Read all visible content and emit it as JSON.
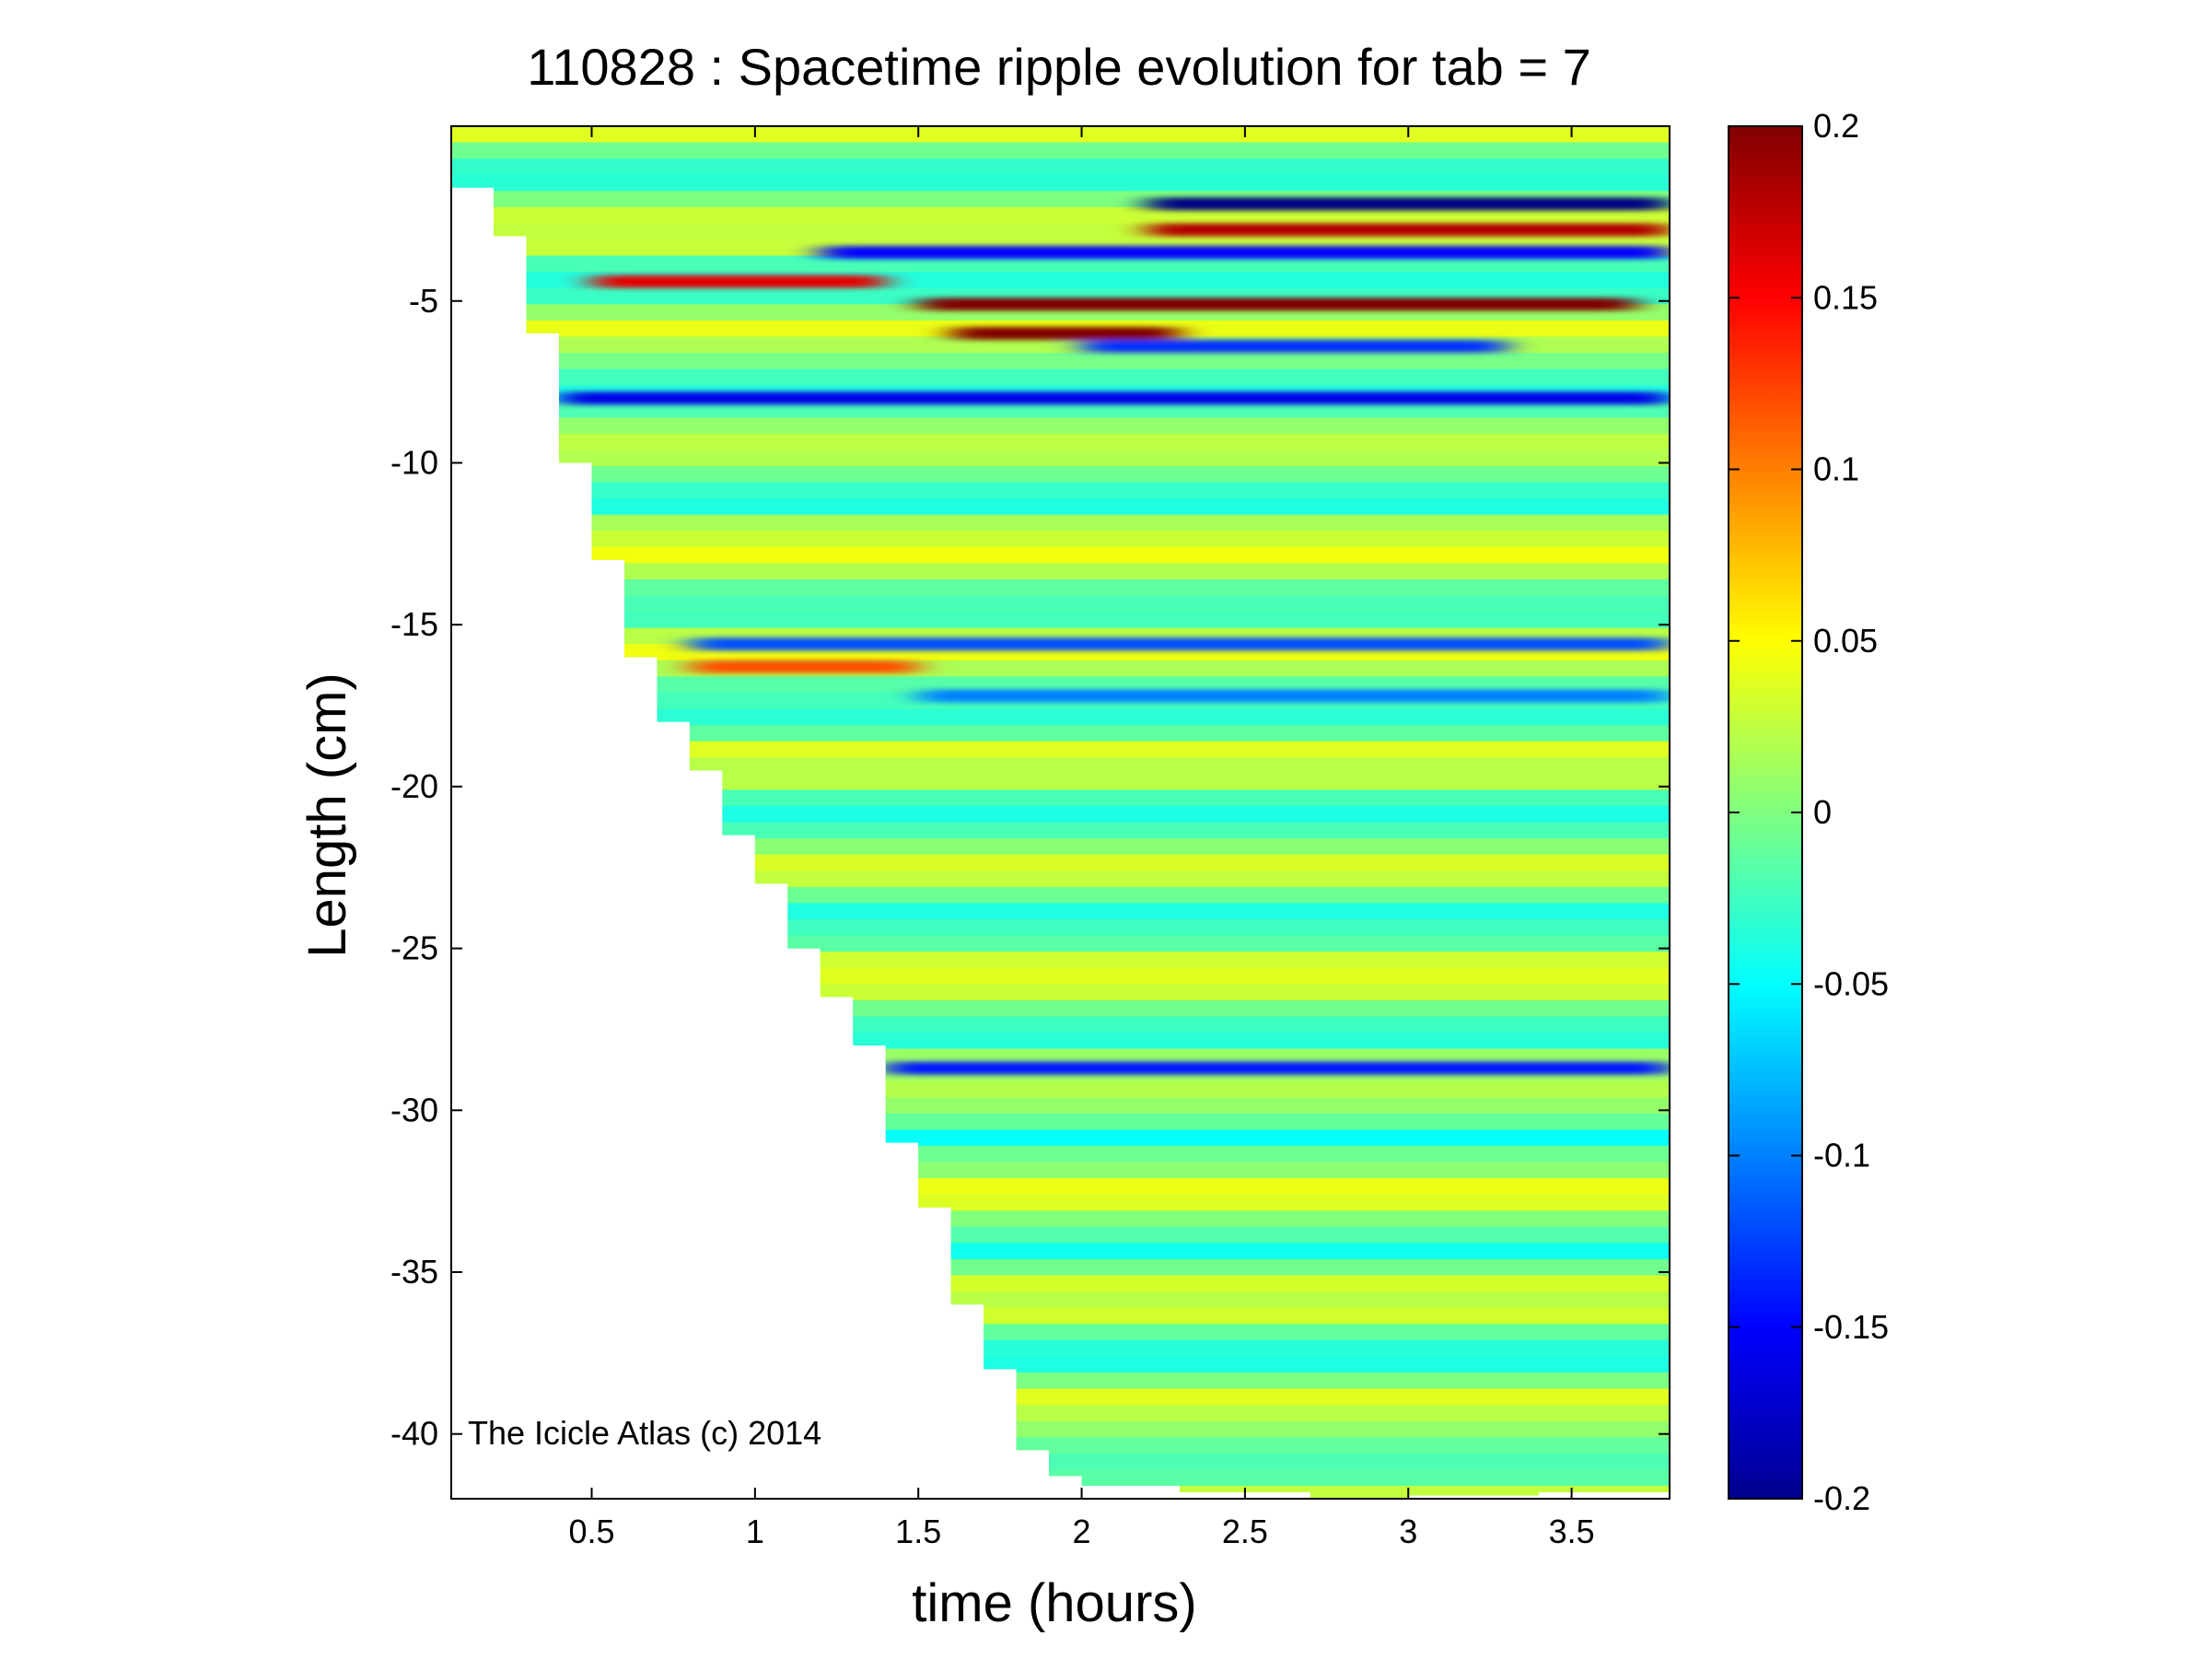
{
  "chart_data": {
    "type": "heatmap",
    "title": "110828 : Spacetime ripple evolution for tab = 7",
    "xlabel": "time (hours)",
    "ylabel": "Length (cm)",
    "xlim": [
      0.07,
      3.8
    ],
    "ylim": [
      -42,
      0.4
    ],
    "x_ticks": [
      0.5,
      1,
      1.5,
      2,
      2.5,
      3,
      3.5
    ],
    "x_tick_labels": [
      "0.5",
      "1",
      "1.5",
      "2",
      "2.5",
      "3",
      "3.5"
    ],
    "y_ticks": [
      -5,
      -10,
      -15,
      -20,
      -25,
      -30,
      -35,
      -40
    ],
    "y_tick_labels": [
      "-5",
      "-10",
      "-15",
      "-20",
      "-25",
      "-30",
      "-35",
      "-40"
    ],
    "colorbar": {
      "colormap": "jet",
      "range": [
        -0.2,
        0.2
      ],
      "ticks": [
        0.2,
        0.15,
        0.1,
        0.05,
        0,
        -0.05,
        -0.1,
        -0.15,
        -0.2
      ],
      "tick_labels": [
        "0.2",
        "0.15",
        "0.1",
        "0.05",
        "0",
        "-0.05",
        "-0.1",
        "-0.15",
        "-0.2"
      ]
    },
    "data_boundary": [
      [
        0.1,
        -1.5
      ],
      [
        0.2,
        -3
      ],
      [
        0.3,
        -6
      ],
      [
        0.4,
        -10
      ],
      [
        0.5,
        -13
      ],
      [
        0.6,
        -16
      ],
      [
        0.7,
        -18
      ],
      [
        0.8,
        -19.5
      ],
      [
        0.9,
        -21.5
      ],
      [
        1.0,
        -23
      ],
      [
        1.1,
        -25
      ],
      [
        1.2,
        -26.5
      ],
      [
        1.3,
        -28
      ],
      [
        1.4,
        -31
      ],
      [
        1.5,
        -33
      ],
      [
        1.6,
        -36
      ],
      [
        1.7,
        -38
      ],
      [
        1.8,
        -40.5
      ],
      [
        1.9,
        -41.3
      ],
      [
        2.0,
        -41.6
      ],
      [
        2.3,
        -41.8
      ],
      [
        2.7,
        -42
      ],
      [
        3.0,
        -41.9
      ],
      [
        3.4,
        -41.8
      ],
      [
        3.8,
        -41.7
      ]
    ],
    "features": [
      {
        "y": -2.0,
        "x_range": [
          2.2,
          3.8
        ],
        "value": -0.2
      },
      {
        "y": -2.8,
        "x_range": [
          2.2,
          3.8
        ],
        "value": 0.18
      },
      {
        "y": -3.5,
        "x_range": [
          1.2,
          3.8
        ],
        "value": -0.15
      },
      {
        "y": -4.4,
        "x_range": [
          0.5,
          1.4
        ],
        "value": 0.16
      },
      {
        "y": -5.1,
        "x_range": [
          1.5,
          3.7
        ],
        "value": 0.2
      },
      {
        "y": -6.0,
        "x_range": [
          1.6,
          2.3
        ],
        "value": 0.2
      },
      {
        "y": -6.4,
        "x_range": [
          2.0,
          3.3
        ],
        "value": -0.13
      },
      {
        "y": -8.0,
        "x_range": [
          0.4,
          3.8
        ],
        "value": -0.16
      },
      {
        "y": -15.6,
        "x_range": [
          0.8,
          3.8
        ],
        "value": -0.12
      },
      {
        "y": -16.3,
        "x_range": [
          0.8,
          1.5
        ],
        "value": 0.12
      },
      {
        "y": -17.2,
        "x_range": [
          1.5,
          3.8
        ],
        "value": -0.1
      },
      {
        "y": -28.7,
        "x_range": [
          1.4,
          3.8
        ],
        "value": -0.14
      }
    ]
  },
  "credit": "The Icicle Atlas (c) 2014"
}
